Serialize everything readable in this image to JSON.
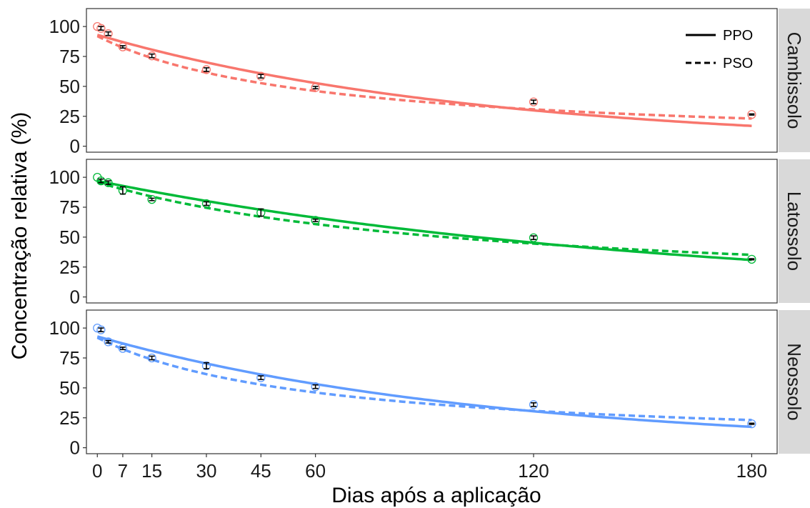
{
  "chart_data": {
    "type": "scatter",
    "xlabel": "Dias após a aplicação",
    "ylabel": "Concentração relativa (%)",
    "x_ticks": [
      0,
      7,
      15,
      30,
      45,
      60,
      120,
      180
    ],
    "y_ticks": [
      0,
      25,
      50,
      75,
      100
    ],
    "xlim": [
      -3,
      187
    ],
    "ylim": [
      -5,
      115
    ],
    "grid": false,
    "legend": {
      "position": "top-right",
      "entries": [
        {
          "label": "PPO",
          "linestyle": "solid"
        },
        {
          "label": "PSO",
          "linestyle": "dashed"
        }
      ]
    },
    "panels": [
      {
        "strip": "Cambissolo",
        "color": "#F8766D",
        "x": [
          0,
          1,
          3,
          7,
          15,
          30,
          45,
          60,
          120,
          180
        ],
        "observed": [
          100,
          98.5,
          94,
          83,
          75.5,
          64,
          58.5,
          49,
          37,
          26.5
        ],
        "error": [
          null,
          1.5,
          1.5,
          1,
          1.5,
          1.5,
          1.5,
          1,
          1.5,
          0.5
        ],
        "ppo_k": 0.00945,
        "ppo_c0": 93,
        "pso_k": 0.00018,
        "pso_c0": 92
      },
      {
        "strip": "Latossolo",
        "color": "#00BA38",
        "x": [
          0,
          1,
          3,
          7,
          15,
          30,
          45,
          60,
          120,
          180
        ],
        "observed": [
          100,
          97,
          95.5,
          89,
          81.5,
          78,
          70.5,
          64,
          49.5,
          31.5
        ],
        "error": [
          null,
          1.5,
          1.5,
          3,
          1,
          1.5,
          3,
          1,
          1.5,
          0.5
        ],
        "ppo_k": 0.00635,
        "ppo_c0": 97,
        "pso_k": 0.0001,
        "pso_c0": 96
      },
      {
        "strip": "Neossolo",
        "color": "#619CFF",
        "x": [
          0,
          1,
          3,
          7,
          15,
          30,
          45,
          60,
          120,
          180
        ],
        "observed": [
          100,
          98.5,
          88.5,
          83,
          75,
          68.5,
          58.5,
          51,
          36,
          20
        ],
        "error": [
          null,
          1.5,
          1,
          1,
          1.5,
          2.5,
          1.5,
          1.5,
          1.5,
          0.5
        ],
        "ppo_k": 0.0093,
        "ppo_c0": 93,
        "pso_k": 0.00018,
        "pso_c0": 92
      }
    ]
  }
}
